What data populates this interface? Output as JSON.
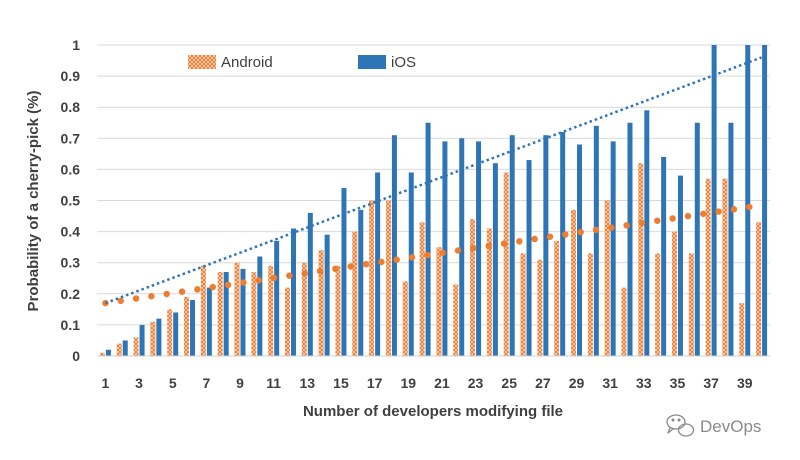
{
  "chart_data": {
    "type": "bar",
    "xlabel": "Number of developers modifying file",
    "ylabel": "Probability of a cherry-pick (%)",
    "ylim": [
      0,
      1
    ],
    "yticks": [
      "0",
      "0.1",
      "0.2",
      "0.3",
      "0.4",
      "0.5",
      "0.6",
      "0.7",
      "0.8",
      "0.9",
      "1"
    ],
    "categories": [
      1,
      2,
      3,
      4,
      5,
      6,
      7,
      8,
      9,
      10,
      11,
      12,
      13,
      14,
      15,
      16,
      17,
      18,
      19,
      20,
      21,
      22,
      23,
      24,
      25,
      26,
      27,
      28,
      29,
      30,
      31,
      32,
      33,
      34,
      35,
      36,
      37,
      38,
      39,
      40
    ],
    "xtick_labels": [
      "1",
      "3",
      "5",
      "7",
      "9",
      "11",
      "13",
      "15",
      "17",
      "19",
      "21",
      "23",
      "25",
      "27",
      "29",
      "31",
      "33",
      "35",
      "37",
      "39"
    ],
    "xtick_values": [
      1,
      3,
      5,
      7,
      9,
      11,
      13,
      15,
      17,
      19,
      21,
      23,
      25,
      27,
      29,
      31,
      33,
      35,
      37,
      39
    ],
    "series": [
      {
        "name": "Android",
        "color": "#ed7d31",
        "pattern": "orange-crosshatch",
        "values": [
          0.01,
          0.04,
          0.06,
          0.11,
          0.15,
          0.19,
          0.29,
          0.27,
          0.3,
          0.27,
          0.29,
          0.22,
          0.3,
          0.34,
          0.29,
          0.4,
          0.5,
          0.5,
          0.24,
          0.43,
          0.35,
          0.23,
          0.44,
          0.41,
          0.59,
          0.33,
          0.31,
          0.37,
          0.47,
          0.33,
          0.5,
          0.22,
          0.62,
          0.33,
          0.4,
          0.33,
          0.57,
          0.57,
          0.17,
          0.43
        ]
      },
      {
        "name": "iOS",
        "color": "#2e75b6",
        "values": [
          0.02,
          0.05,
          0.1,
          0.12,
          0.14,
          0.18,
          0.22,
          0.27,
          0.28,
          0.32,
          0.37,
          0.41,
          0.46,
          0.39,
          0.54,
          0.47,
          0.59,
          0.71,
          0.59,
          0.75,
          0.69,
          0.7,
          0.69,
          0.62,
          0.71,
          0.63,
          0.71,
          0.72,
          0.68,
          0.74,
          0.69,
          0.75,
          0.79,
          0.64,
          0.58,
          0.75,
          1.0,
          0.75,
          1.0,
          1.0
        ]
      }
    ],
    "trendlines": [
      {
        "series": "Android",
        "style": "dotted-round",
        "color": "#ed7d31",
        "start": 0.17,
        "end": 0.485
      },
      {
        "series": "iOS",
        "style": "dotted",
        "color": "#2e75b6",
        "start": 0.17,
        "end": 0.96
      }
    ],
    "legend": {
      "placement": "top-left"
    },
    "grid": true
  },
  "watermark": {
    "text": "DevOps"
  }
}
